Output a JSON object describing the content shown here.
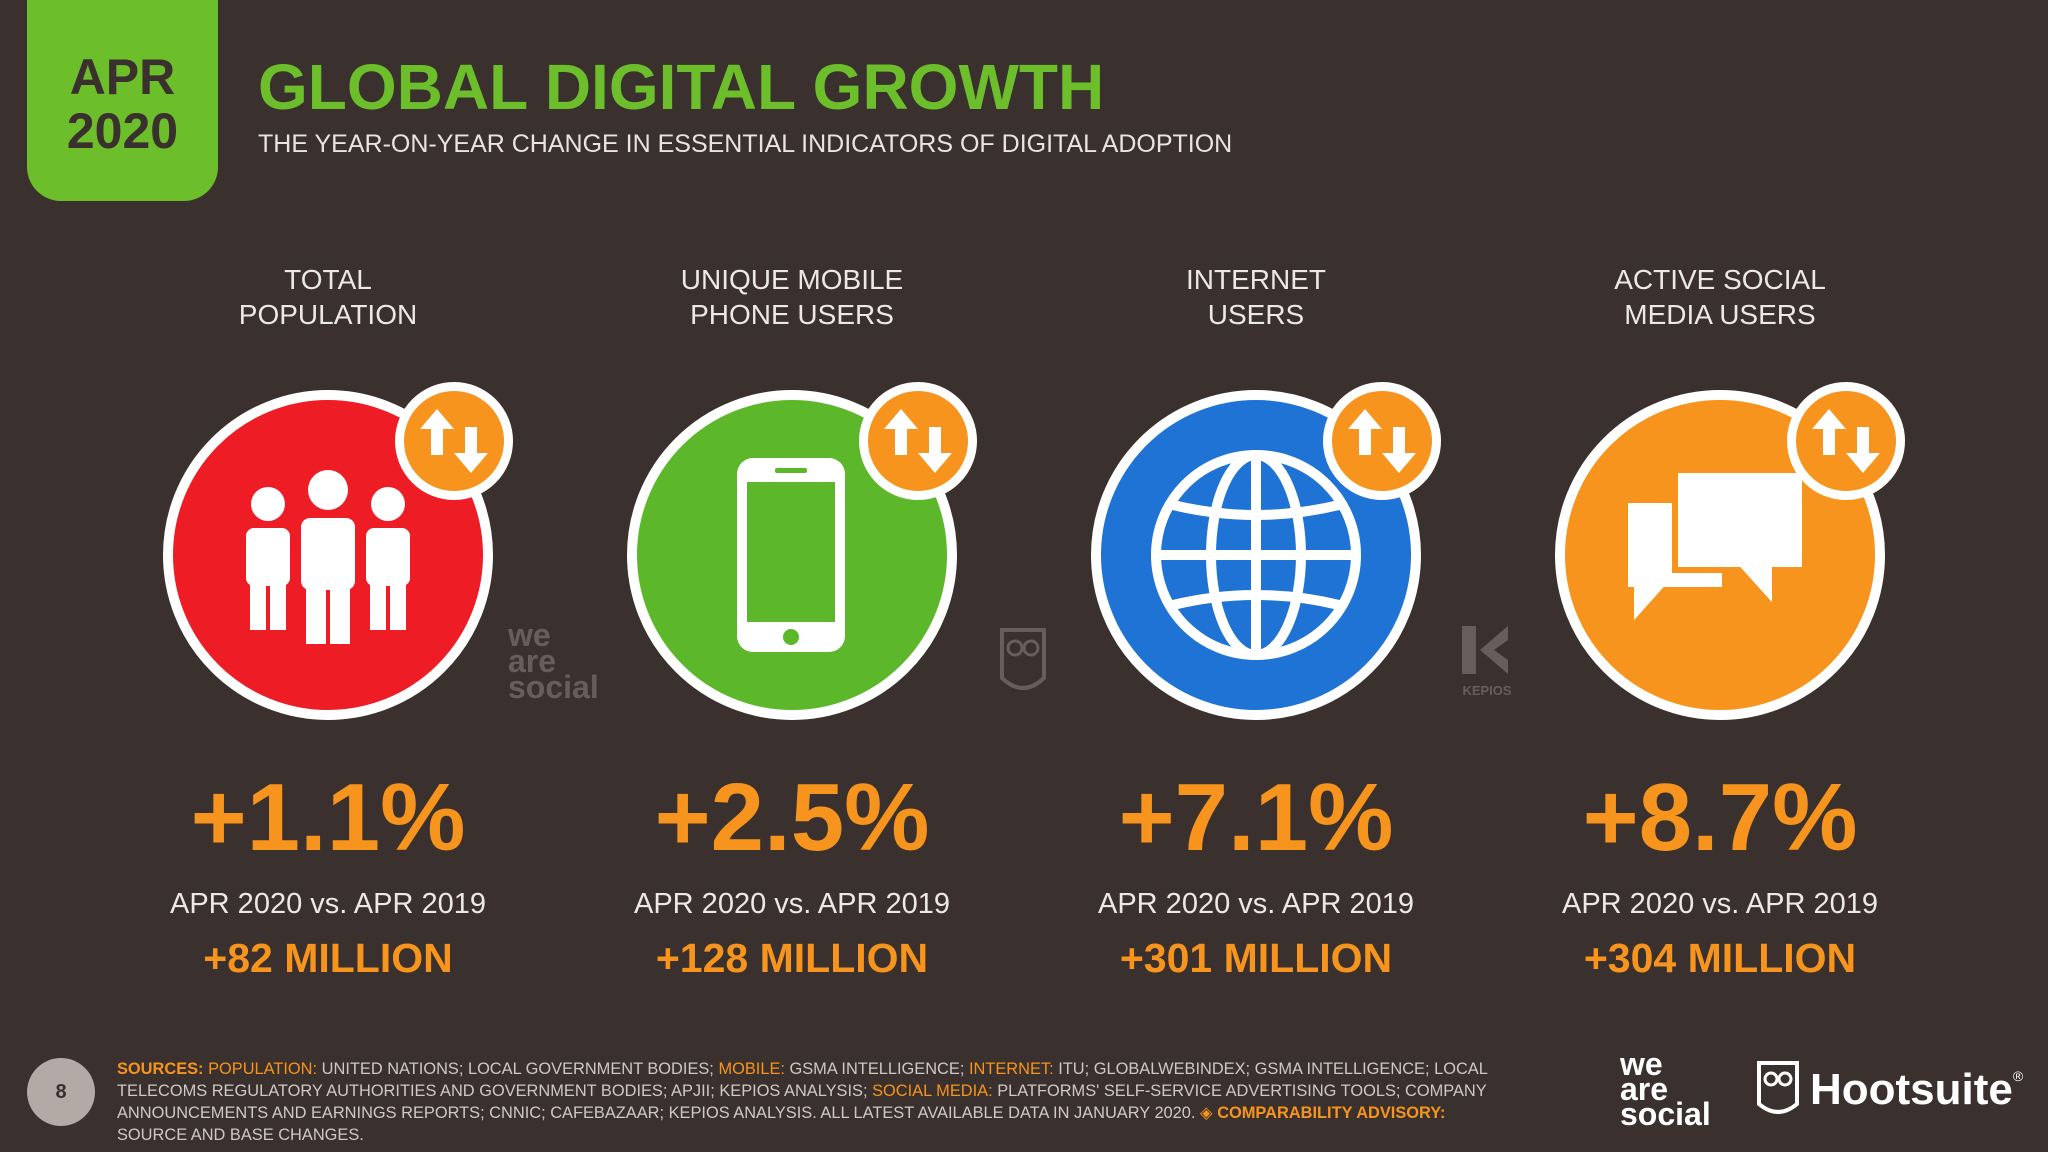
{
  "header": {
    "badge_month": "APR",
    "badge_year": "2020",
    "title": "GLOBAL DIGITAL GROWTH",
    "subtitle": "THE YEAR-ON-YEAR CHANGE IN ESSENTIAL INDICATORS OF DIGITAL ADOPTION"
  },
  "indicators": [
    {
      "label_line1": "TOTAL",
      "label_line2": "POPULATION",
      "icon": "people-icon",
      "color": "#ee1c24",
      "change": "+1.1%",
      "comparison": "APR 2020 vs. APR 2019",
      "absolute": "+82 MILLION"
    },
    {
      "label_line1": "UNIQUE MOBILE",
      "label_line2": "PHONE USERS",
      "icon": "mobile-phone-icon",
      "color": "#5cb82a",
      "change": "+2.5%",
      "comparison": "APR 2020 vs. APR 2019",
      "absolute": "+128 MILLION"
    },
    {
      "label_line1": "INTERNET",
      "label_line2": "USERS",
      "icon": "globe-icon",
      "color": "#1e73d4",
      "change": "+7.1%",
      "comparison": "APR 2020 vs. APR 2019",
      "absolute": "+301 MILLION"
    },
    {
      "label_line1": "ACTIVE SOCIAL",
      "label_line2": "MEDIA USERS",
      "icon": "chat-bubbles-icon",
      "color": "#f7941d",
      "change": "+8.7%",
      "comparison": "APR 2020 vs. APR 2019",
      "absolute": "+304 MILLION"
    }
  ],
  "watermarks": {
    "we_are_social": [
      "we",
      "are",
      "social"
    ],
    "kepios": "KEPIOS"
  },
  "footer": {
    "page_number": "8",
    "sources_label": "SOURCES:",
    "population_label": "POPULATION:",
    "population_text": "UNITED NATIONS; LOCAL GOVERNMENT BODIES;",
    "mobile_label": "MOBILE:",
    "mobile_text": "GSMA INTELLIGENCE;",
    "internet_label": "INTERNET:",
    "internet_text": "ITU; GLOBALWEBINDEX; GSMA INTELLIGENCE; LOCAL TELECOMS REGULATORY AUTHORITIES AND GOVERNMENT BODIES; APJII; KEPIOS ANALYSIS;",
    "social_label": "SOCIAL MEDIA:",
    "social_text": "PLATFORMS' SELF-SERVICE ADVERTISING TOOLS; COMPANY ANNOUNCEMENTS AND EARNINGS REPORTS; CNNIC; CAFEBAZAAR; KEPIOS ANALYSIS. ALL LATEST AVAILABLE DATA IN JANUARY 2020.",
    "advisory_label": "◈ COMPARABILITY ADVISORY:",
    "advisory_text": "SOURCE AND BASE CHANGES.",
    "brand_we": [
      "we",
      "are",
      "social"
    ],
    "brand_hootsuite": "Hootsuite",
    "registered": "®"
  },
  "colors": {
    "green": "#6cbf2b",
    "orange": "#f7941d",
    "background": "#3a302d"
  }
}
